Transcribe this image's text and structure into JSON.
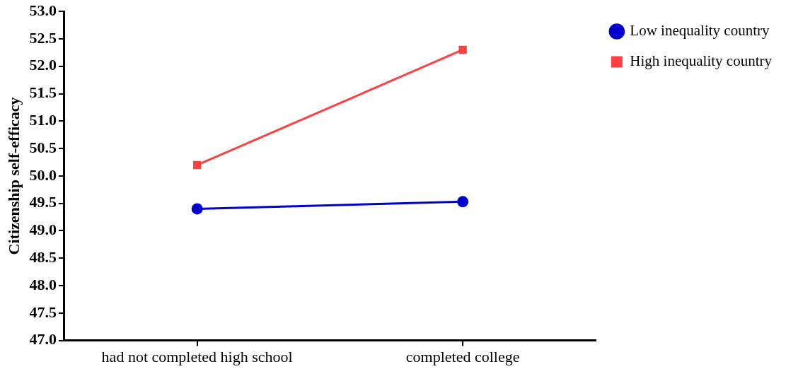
{
  "chart_data": {
    "type": "line",
    "ylabel": "Citizenship self-efficacy",
    "categories": [
      "had not completed high school",
      "completed college"
    ],
    "series": [
      {
        "name": "Low inequality country",
        "color": "#0000cc",
        "marker": "circle",
        "values": [
          49.4,
          49.53
        ]
      },
      {
        "name": "High inequality country",
        "color": "#ff4040",
        "marker": "square",
        "values": [
          50.2,
          52.3
        ]
      }
    ],
    "ylim": [
      47.0,
      53.0
    ],
    "yticks": [
      {
        "value": 47,
        "label": "47.0"
      },
      {
        "value": 47.5,
        "label": "47.5"
      },
      {
        "value": 48,
        "label": "48.0"
      },
      {
        "value": 48.5,
        "label": "48.5"
      },
      {
        "value": 49,
        "label": "49.0"
      },
      {
        "value": 49.5,
        "label": "49.5"
      },
      {
        "value": 50,
        "label": "50.0"
      },
      {
        "value": 50.5,
        "label": "50.5"
      },
      {
        "value": 51,
        "label": "51.0"
      },
      {
        "value": 51.5,
        "label": "51.5"
      },
      {
        "value": 52,
        "label": "52.0"
      },
      {
        "value": 52.5,
        "label": "52.5"
      },
      {
        "value": 53,
        "label": "53.0"
      }
    ],
    "legend": "right",
    "line_style": "solid"
  }
}
